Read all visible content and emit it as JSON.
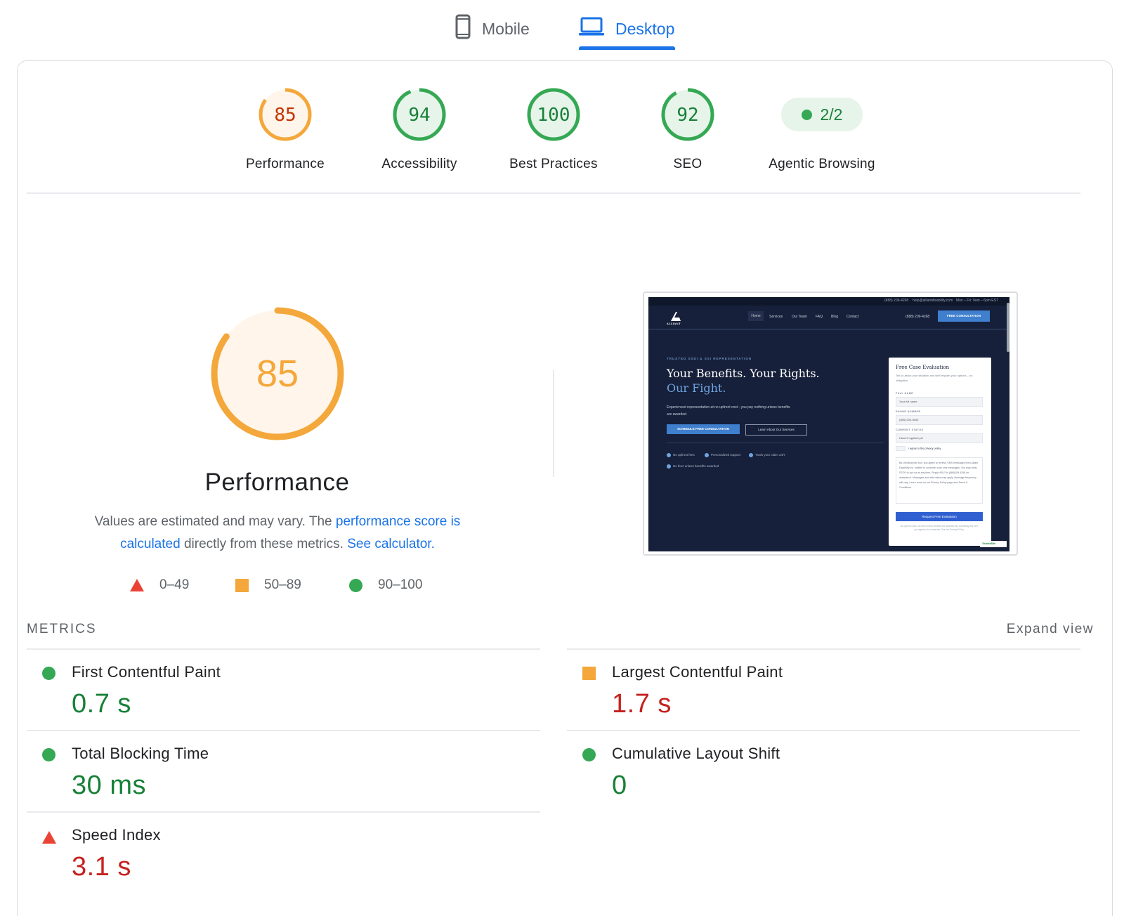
{
  "tabs": {
    "mobile": "Mobile",
    "desktop": "Desktop",
    "active": "desktop"
  },
  "categories": [
    {
      "label": "Performance",
      "score": "85",
      "level": "average",
      "value": 85
    },
    {
      "label": "Accessibility",
      "score": "94",
      "level": "pass",
      "value": 94
    },
    {
      "label": "Best Practices",
      "score": "100",
      "level": "pass",
      "value": 100
    },
    {
      "label": "SEO",
      "score": "92",
      "level": "pass",
      "value": 92
    },
    {
      "label": "Agentic Browsing",
      "score": "2/2",
      "level": "pass"
    }
  ],
  "performance": {
    "score": "85",
    "value": 85,
    "title": "Performance",
    "desc_prefix": "Values are estimated and may vary. The ",
    "desc_link": "performance score is calculated",
    "desc_mid": " directly from these metrics. ",
    "desc_calc": "See calculator."
  },
  "legend": {
    "fail": "0–49",
    "average": "50–89",
    "pass": "90–100"
  },
  "screenshot": {
    "topbar_phone": "(888) 209-4268",
    "topbar_email": "help@alliantdisability.com",
    "topbar_hours": "Mon – Fri: 9am – 6pm EST",
    "logo": "ALLIANT",
    "nav": [
      "Home",
      "Services",
      "Our Team",
      "FAQ",
      "Blog",
      "Contact"
    ],
    "nav_phone": "(888) 209-4268",
    "nav_cta": "FREE CONSULTATION",
    "eyebrow": "TRUSTED SSDI & SSI REPRESENTATION",
    "headline": "Your Benefits. Your Rights.",
    "headline_accent": "Our Fight.",
    "subtext": "Experienced representation at no upfront cost - you pay nothing unless benefits are awarded.",
    "btn_primary": "SCHEDULE FREE CONSULTATION",
    "btn_secondary": "Learn About Our Services",
    "checks": [
      "No upfront fees",
      "Personalized support",
      "Track your claim 24/7",
      "No fees unless benefits awarded"
    ],
    "form": {
      "title": "Free Case Evaluation",
      "subtitle": "Tell us about your situation and we'll explain your options – no obligation.",
      "label_name": "FULL NAME",
      "placeholder_name": "Your full name",
      "label_phone": "PHONE NUMBER",
      "placeholder_phone": "(555) 000-0000",
      "label_status": "CURRENT STATUS",
      "status_value": "Haven't applied yet",
      "consent": "I agree to the privacy policy.",
      "sms_text": "By checking this box, you agree to receive SMS messages from Alliant Disability Inc. related to customer care sms messages. You may reply STOP to opt out at any time. Reply HELP to (888)209-4268 for assistance. Messages and data rates may apply. Message frequency will vary. Learn more on our Privacy Policy page and Terms & Conditions.",
      "submit": "Request Free Evaluation",
      "footer": "No upfront costs. No fees unless benefits are awarded. By submitting this form you agree to be contacted. See our Privacy Policy."
    },
    "badge": "TrustedSite"
  },
  "metrics": {
    "header": "METRICS",
    "expand": "Expand view",
    "items": [
      {
        "label": "First Contentful Paint",
        "value": "0.7 s",
        "level": "pass"
      },
      {
        "label": "Largest Contentful Paint",
        "value": "1.7 s",
        "level": "average"
      },
      {
        "label": "Total Blocking Time",
        "value": "30 ms",
        "level": "pass"
      },
      {
        "label": "Cumulative Layout Shift",
        "value": "0",
        "level": "pass"
      },
      {
        "label": "Speed Index",
        "value": "3.1 s",
        "level": "fail"
      }
    ]
  },
  "colors": {
    "pass": "#188038",
    "pass_ring": "#34a853",
    "pass_bg": "#e6f4ea",
    "average_text": "#c33300",
    "average_ring": "#f4a73a",
    "average_bg": "#fff5ea",
    "fail": "#c5221f",
    "fail_marker": "#ea4335",
    "link": "#1a73e8"
  }
}
